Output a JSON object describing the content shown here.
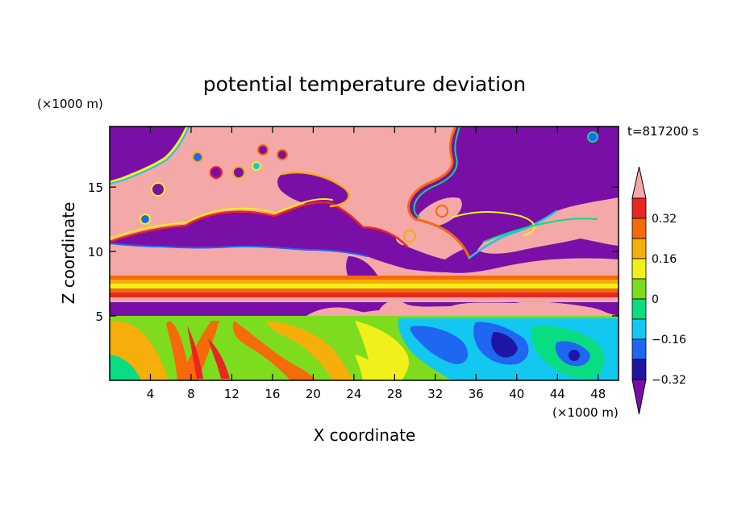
{
  "chart_data": {
    "type": "heatmap",
    "title": "potential temperature deviation",
    "xlabel": "X coordinate",
    "ylabel": "Z coordinate",
    "x_unit": "(×1000 m)",
    "y_unit": "(×1000 m)",
    "time_label": "t=817200 s",
    "xlim": [
      0,
      50
    ],
    "ylim": [
      0,
      19.7
    ],
    "x_ticks": [
      4,
      8,
      12,
      16,
      20,
      24,
      28,
      32,
      36,
      40,
      44,
      48
    ],
    "y_ticks": [
      5,
      10,
      15
    ],
    "colorbar": {
      "levels": [
        -0.4,
        -0.32,
        -0.24,
        -0.16,
        -0.08,
        0,
        0.08,
        0.16,
        0.24,
        0.32,
        0.4
      ],
      "labeled_levels": [
        0.32,
        0.16,
        0,
        -0.16,
        -0.32
      ],
      "labels": [
        "0.32",
        "0.16",
        "0",
        "−0.16",
        "−0.32"
      ],
      "colors": [
        "#7a0fa8",
        "#1d16a3",
        "#1f66f0",
        "#12c8f0",
        "#0adc82",
        "#7edc1e",
        "#f2f01a",
        "#f5ae0a",
        "#f56a0a",
        "#ea2620",
        "#f4a8a8"
      ],
      "extend": "both"
    }
  }
}
